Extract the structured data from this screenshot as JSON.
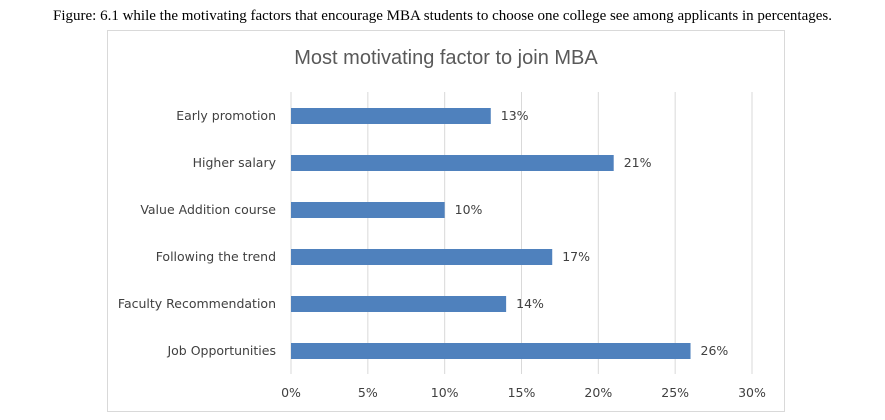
{
  "caption": "Figure: 6.1 while the motivating factors that encourage MBA students to choose one college see among applicants in percentages.",
  "chart_data": {
    "type": "bar",
    "orientation": "horizontal",
    "title": "Most motivating factor to join MBA",
    "categories": [
      "Early promotion",
      "Higher salary",
      "Value Addition course",
      "Following the trend",
      "Faculty Recommendation",
      "Job Opportunities"
    ],
    "values": [
      13,
      21,
      10,
      17,
      14,
      26
    ],
    "value_labels": [
      "13%",
      "21%",
      "10%",
      "17%",
      "14%",
      "26%"
    ],
    "xlim": [
      0,
      30
    ],
    "x_ticks": [
      0,
      5,
      10,
      15,
      20,
      25,
      30
    ],
    "x_tick_labels": [
      "0%",
      "5%",
      "10%",
      "15%",
      "20%",
      "25%",
      "30%"
    ],
    "grid": "vertical",
    "legend": "none",
    "bar_color": "#4f81bd",
    "grid_color": "#d9d9d9"
  }
}
